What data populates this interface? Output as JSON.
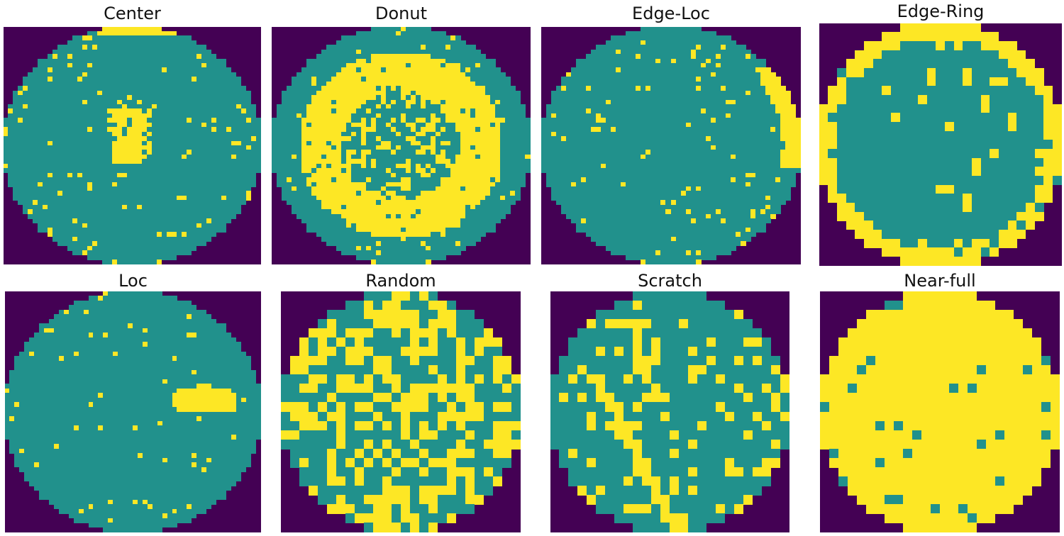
{
  "colors": {
    "background": "#440154",
    "pass": "#21918c",
    "fail": "#fde725"
  },
  "panels": [
    {
      "label": "Center",
      "grid": 52,
      "fail_density": 0.04,
      "pattern": "center"
    },
    {
      "label": "Donut",
      "grid": 52,
      "fail_density": 0.05,
      "pattern": "donut"
    },
    {
      "label": "Edge-Loc",
      "grid": 52,
      "fail_density": 0.04,
      "pattern": "edge-loc"
    },
    {
      "label": "Edge-Ring",
      "grid": 27,
      "fail_density": 0.08,
      "pattern": "edge-ring"
    },
    {
      "label": "Loc",
      "grid": 52,
      "fail_density": 0.025,
      "pattern": "loc"
    },
    {
      "label": "Random",
      "grid": 26,
      "fail_density": 0.48,
      "pattern": "random"
    },
    {
      "label": "Scratch",
      "grid": 26,
      "fail_density": 0.16,
      "pattern": "scratch"
    },
    {
      "label": "Near-full",
      "grid": 26,
      "fail_density": 0.95,
      "pattern": "near-full"
    }
  ]
}
